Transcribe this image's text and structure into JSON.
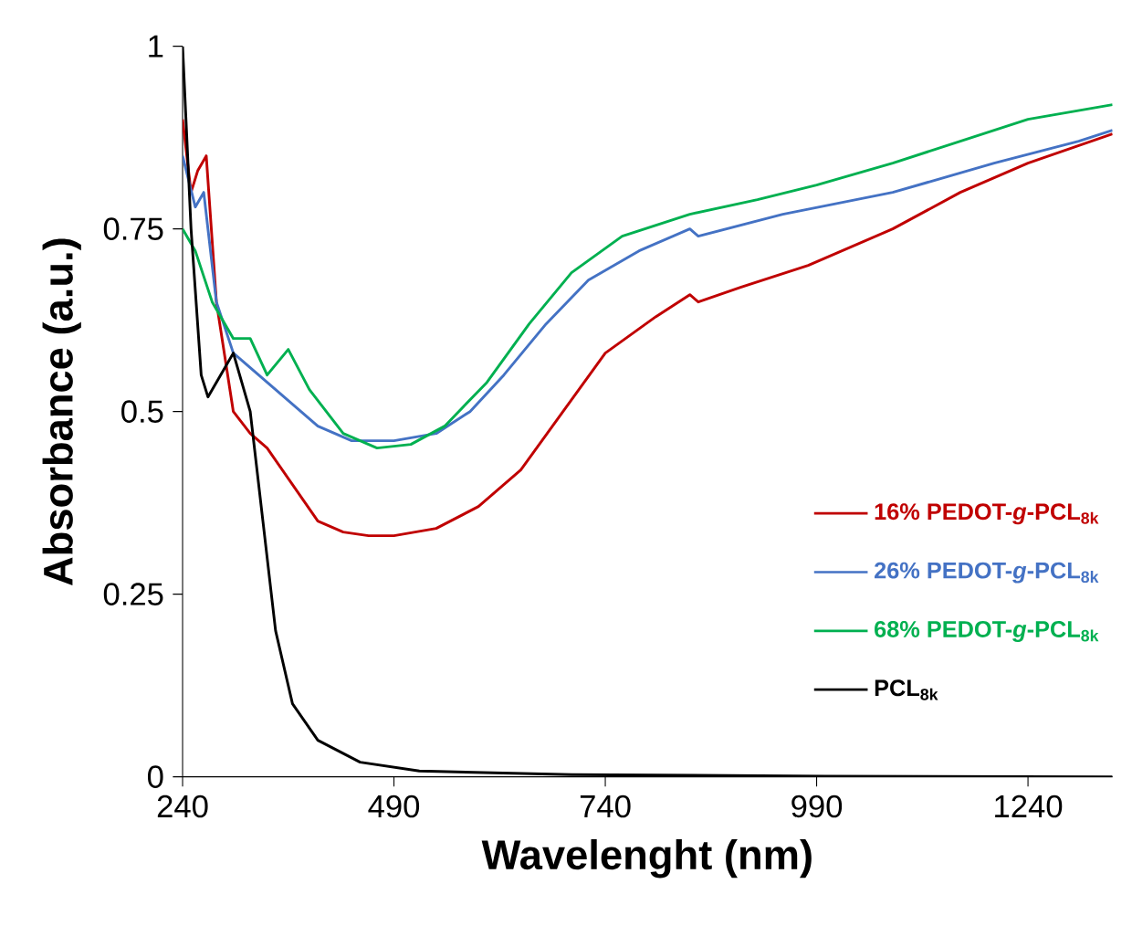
{
  "chart_data": {
    "type": "line",
    "xlabel": "Wavelenght (nm)",
    "ylabel": "Absorbance (a.u.)",
    "xlim": [
      240,
      1340
    ],
    "ylim": [
      0,
      1
    ],
    "xticks": [
      240,
      490,
      740,
      990,
      1240
    ],
    "yticks": [
      0,
      0.25,
      0.5,
      0.75,
      1
    ],
    "grid": false,
    "legend": "right",
    "marker": "none",
    "line_style": "solid",
    "series": [
      {
        "name": "16% PEDOT-*g*-PCL$_{8k}$",
        "color": "#c00000",
        "x": [
          240,
          250,
          258,
          268,
          280,
          300,
          320,
          340,
          370,
          400,
          430,
          460,
          490,
          540,
          590,
          640,
          690,
          740,
          800,
          840,
          850,
          900,
          980,
          1080,
          1160,
          1240,
          1340
        ],
        "values": [
          0.9,
          0.8,
          0.83,
          0.85,
          0.65,
          0.5,
          0.47,
          0.45,
          0.4,
          0.35,
          0.335,
          0.33,
          0.33,
          0.34,
          0.37,
          0.42,
          0.5,
          0.58,
          0.63,
          0.66,
          0.65,
          0.67,
          0.7,
          0.75,
          0.8,
          0.84,
          0.88
        ]
      },
      {
        "name": "26% PEDOT-*g*-PCL$_{8k}$",
        "color": "#4472c4",
        "x": [
          240,
          255,
          265,
          280,
          300,
          330,
          360,
          400,
          440,
          490,
          540,
          580,
          620,
          670,
          720,
          780,
          840,
          850,
          950,
          1080,
          1200,
          1300,
          1340
        ],
        "values": [
          0.85,
          0.78,
          0.8,
          0.65,
          0.58,
          0.55,
          0.52,
          0.48,
          0.46,
          0.46,
          0.47,
          0.5,
          0.55,
          0.62,
          0.68,
          0.72,
          0.75,
          0.74,
          0.77,
          0.8,
          0.84,
          0.87,
          0.885
        ]
      },
      {
        "name": "68% PEDOT-*g*-PCL$_{8k}$",
        "color": "#00b050",
        "x": [
          240,
          255,
          275,
          300,
          320,
          340,
          365,
          390,
          430,
          470,
          510,
          550,
          600,
          650,
          700,
          760,
          840,
          920,
          990,
          1080,
          1160,
          1240,
          1340
        ],
        "values": [
          0.75,
          0.72,
          0.65,
          0.6,
          0.6,
          0.55,
          0.585,
          0.53,
          0.47,
          0.45,
          0.455,
          0.48,
          0.54,
          0.62,
          0.69,
          0.74,
          0.77,
          0.79,
          0.81,
          0.84,
          0.87,
          0.9,
          0.92
        ]
      },
      {
        "name": "PCL$_{8k}$",
        "color": "#000000",
        "x": [
          240,
          250,
          262,
          270,
          285,
          300,
          320,
          335,
          350,
          370,
          400,
          450,
          520,
          700,
          1000,
          1340
        ],
        "values": [
          1.0,
          0.75,
          0.55,
          0.52,
          0.55,
          0.58,
          0.5,
          0.35,
          0.2,
          0.1,
          0.05,
          0.02,
          0.008,
          0.003,
          0.001,
          0.0
        ]
      }
    ]
  }
}
